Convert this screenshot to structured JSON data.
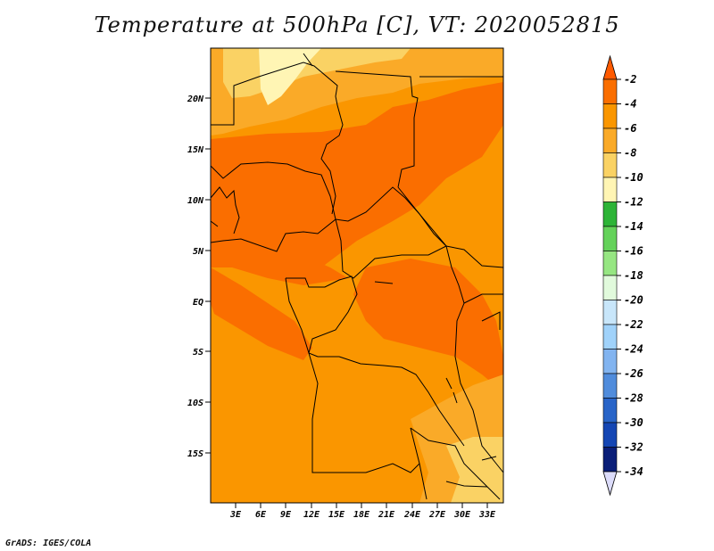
{
  "title": "Temperature at 500hPa [C], VT: 2020052815",
  "credit": "GrADS: IGES/COLA",
  "lat_ticks": [
    "20N",
    "15N",
    "10N",
    "5N",
    "EQ",
    "5S",
    "10S",
    "15S"
  ],
  "lon_ticks": [
    "3E",
    "6E",
    "9E",
    "12E",
    "15E",
    "18E",
    "21E",
    "24E",
    "27E",
    "30E",
    "33E"
  ],
  "colorbar": {
    "labels": [
      "-2",
      "-4",
      "-6",
      "-8",
      "-10",
      "-12",
      "-14",
      "-16",
      "-18",
      "-20",
      "-22",
      "-24",
      "-26",
      "-28",
      "-30",
      "-32",
      "-34"
    ],
    "colors": [
      "#ff5a00",
      "#fa6e00",
      "#fa9600",
      "#faaa28",
      "#fad264",
      "#fff5b4",
      "#2db437",
      "#64d25a",
      "#96e682",
      "#e1fadc",
      "#c8e6fa",
      "#a0d2fa",
      "#82b4f0",
      "#508cdc",
      "#2864c8",
      "#1446b4",
      "#0a1e78",
      "#dcdcfa"
    ]
  },
  "palette": {
    "land_base": "#fa9600",
    "warm": "#fa6e00",
    "cool": "#faaa28",
    "cooler": "#fad264",
    "coolest": "#fff5b4",
    "borders": "#000000"
  }
}
